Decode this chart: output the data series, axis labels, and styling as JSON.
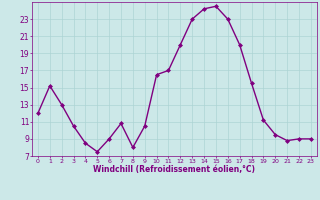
{
  "x": [
    0,
    1,
    2,
    3,
    4,
    5,
    6,
    7,
    8,
    9,
    10,
    11,
    12,
    13,
    14,
    15,
    16,
    17,
    18,
    19,
    20,
    21,
    22,
    23
  ],
  "y": [
    12.0,
    15.2,
    13.0,
    10.5,
    8.5,
    7.5,
    9.0,
    10.8,
    8.0,
    10.5,
    16.5,
    17.0,
    20.0,
    23.0,
    24.2,
    24.5,
    23.0,
    20.0,
    15.5,
    11.2,
    9.5,
    8.8,
    9.0,
    9.0
  ],
  "line_color": "#800080",
  "marker": "D",
  "marker_size": 2.0,
  "bg_color": "#cce8e8",
  "grid_color": "#add4d4",
  "xlabel": "Windchill (Refroidissement éolien,°C)",
  "xlabel_color": "#800080",
  "tick_color": "#800080",
  "ylim": [
    7,
    25
  ],
  "xlim": [
    -0.5,
    23.5
  ],
  "yticks": [
    7,
    9,
    11,
    13,
    15,
    17,
    19,
    21,
    23
  ],
  "xticks": [
    0,
    1,
    2,
    3,
    4,
    5,
    6,
    7,
    8,
    9,
    10,
    11,
    12,
    13,
    14,
    15,
    16,
    17,
    18,
    19,
    20,
    21,
    22,
    23
  ],
  "figsize": [
    3.2,
    2.0
  ],
  "dpi": 100
}
